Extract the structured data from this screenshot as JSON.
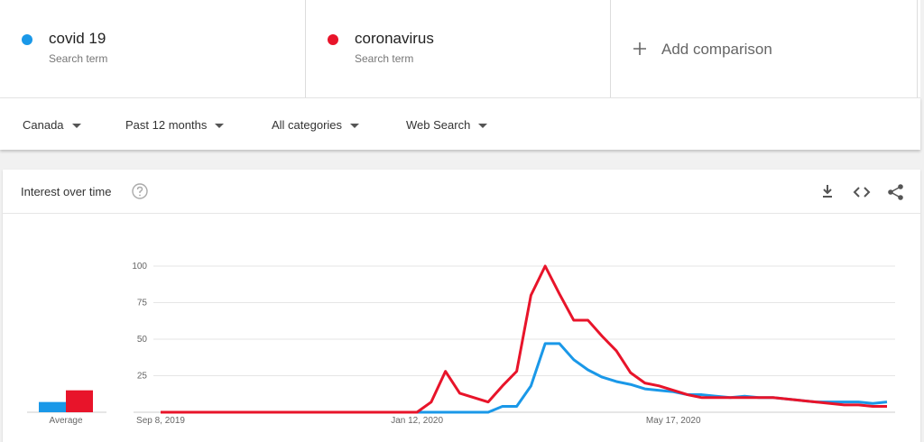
{
  "search_term_labels": [
    "Search term",
    "Search term"
  ],
  "add_comparison": "Add comparison",
  "filters": [
    "Canada",
    "Past 12 months",
    "All categories",
    "Web Search"
  ],
  "card_title": "Interest over time",
  "chart_data": {
    "type": "line",
    "categories": [
      "Sep 8, 2019",
      null,
      null,
      null,
      null,
      null,
      null,
      null,
      null,
      null,
      null,
      null,
      null,
      null,
      null,
      null,
      null,
      null,
      "Jan 12, 2020",
      null,
      null,
      null,
      null,
      null,
      null,
      null,
      null,
      null,
      null,
      null,
      null,
      null,
      null,
      null,
      null,
      null,
      "May 17, 2020",
      null,
      null,
      null,
      null,
      null,
      null,
      null,
      null,
      null,
      null,
      null,
      null,
      null,
      null,
      null
    ],
    "series": [
      {
        "name": "covid 19",
        "color": "#1a98e8",
        "average": 7,
        "values": [
          0,
          0,
          0,
          0,
          0,
          0,
          0,
          0,
          0,
          0,
          0,
          0,
          0,
          0,
          0,
          0,
          0,
          0,
          0,
          0,
          0,
          0,
          0,
          0,
          4,
          4,
          18,
          47,
          47,
          36,
          29,
          24,
          21,
          19,
          16,
          15,
          14,
          12,
          12,
          11,
          10,
          11,
          10,
          10,
          9,
          8,
          7,
          7,
          7,
          7,
          6,
          7
        ]
      },
      {
        "name": "coronavirus",
        "color": "#e8142a",
        "average": 15,
        "values": [
          0,
          0,
          0,
          0,
          0,
          0,
          0,
          0,
          0,
          0,
          0,
          0,
          0,
          0,
          0,
          0,
          0,
          0,
          0,
          7,
          28,
          13,
          10,
          7,
          18,
          28,
          80,
          100,
          81,
          63,
          63,
          52,
          42,
          27,
          20,
          18,
          15,
          12,
          10,
          10,
          10,
          10,
          10,
          10,
          9,
          8,
          7,
          6,
          5,
          5,
          4,
          4
        ]
      }
    ],
    "average_label": "Average",
    "ylim": [
      0,
      100
    ],
    "yticks": [
      25,
      50,
      75,
      100
    ],
    "grid": true
  }
}
